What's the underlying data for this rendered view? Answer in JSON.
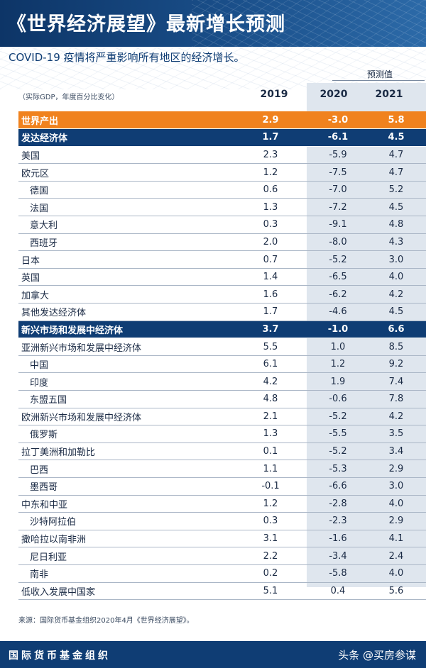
{
  "header": {
    "title": "《世界经济展望》最新增长预测",
    "subtitle": "COVID-19 疫情将严重影响所有地区的经济增长。"
  },
  "table": {
    "units_note": "（实际GDP，年度百分比变化）",
    "projections_label": "预测值",
    "years": [
      "2019",
      "2020",
      "2021"
    ],
    "rows": [
      {
        "name": "世界产出",
        "v2019": "2.9",
        "v2020": "-3.0",
        "v2021": "5.8",
        "style": "orange",
        "level": 1
      },
      {
        "name": "发达经济体",
        "v2019": "1.7",
        "v2020": "-6.1",
        "v2021": "4.5",
        "style": "blue",
        "level": 1
      },
      {
        "name": "美国",
        "v2019": "2.3",
        "v2020": "-5.9",
        "v2021": "4.7",
        "style": "plain",
        "level": 1
      },
      {
        "name": "欧元区",
        "v2019": "1.2",
        "v2020": "-7.5",
        "v2021": "4.7",
        "style": "plain",
        "level": 1
      },
      {
        "name": "德国",
        "v2019": "0.6",
        "v2020": "-7.0",
        "v2021": "5.2",
        "style": "plain",
        "level": 2
      },
      {
        "name": "法国",
        "v2019": "1.3",
        "v2020": "-7.2",
        "v2021": "4.5",
        "style": "plain",
        "level": 2
      },
      {
        "name": "意大利",
        "v2019": "0.3",
        "v2020": "-9.1",
        "v2021": "4.8",
        "style": "plain",
        "level": 2
      },
      {
        "name": "西班牙",
        "v2019": "2.0",
        "v2020": "-8.0",
        "v2021": "4.3",
        "style": "plain",
        "level": 2
      },
      {
        "name": "日本",
        "v2019": "0.7",
        "v2020": "-5.2",
        "v2021": "3.0",
        "style": "plain",
        "level": 1
      },
      {
        "name": "英国",
        "v2019": "1.4",
        "v2020": "-6.5",
        "v2021": "4.0",
        "style": "plain",
        "level": 1
      },
      {
        "name": "加拿大",
        "v2019": "1.6",
        "v2020": "-6.2",
        "v2021": "4.2",
        "style": "plain",
        "level": 1
      },
      {
        "name": "其他发达经济体",
        "v2019": "1.7",
        "v2020": "-4.6",
        "v2021": "4.5",
        "style": "plain",
        "level": 1
      },
      {
        "name": "新兴市场和发展中经济体",
        "v2019": "3.7",
        "v2020": "-1.0",
        "v2021": "6.6",
        "style": "blue",
        "level": 1
      },
      {
        "name": "亚洲新兴市场和发展中经济体",
        "v2019": "5.5",
        "v2020": "1.0",
        "v2021": "8.5",
        "style": "plain",
        "level": 1
      },
      {
        "name": "中国",
        "v2019": "6.1",
        "v2020": "1.2",
        "v2021": "9.2",
        "style": "plain",
        "level": 2
      },
      {
        "name": "印度",
        "v2019": "4.2",
        "v2020": "1.9",
        "v2021": "7.4",
        "style": "plain",
        "level": 2
      },
      {
        "name": "东盟五国",
        "v2019": "4.8",
        "v2020": "-0.6",
        "v2021": "7.8",
        "style": "plain",
        "level": 2
      },
      {
        "name": "欧洲新兴市场和发展中经济体",
        "v2019": "2.1",
        "v2020": "-5.2",
        "v2021": "4.2",
        "style": "plain",
        "level": 1
      },
      {
        "name": "俄罗斯",
        "v2019": "1.3",
        "v2020": "-5.5",
        "v2021": "3.5",
        "style": "plain",
        "level": 2
      },
      {
        "name": "拉丁美洲和加勒比",
        "v2019": "0.1",
        "v2020": "-5.2",
        "v2021": "3.4",
        "style": "plain",
        "level": 1
      },
      {
        "name": "巴西",
        "v2019": "1.1",
        "v2020": "-5.3",
        "v2021": "2.9",
        "style": "plain",
        "level": 2
      },
      {
        "name": "墨西哥",
        "v2019": "-0.1",
        "v2020": "-6.6",
        "v2021": "3.0",
        "style": "plain",
        "level": 2
      },
      {
        "name": "中东和中亚",
        "v2019": "1.2",
        "v2020": "-2.8",
        "v2021": "4.0",
        "style": "plain",
        "level": 1
      },
      {
        "name": "沙特阿拉伯",
        "v2019": "0.3",
        "v2020": "-2.3",
        "v2021": "2.9",
        "style": "plain",
        "level": 2
      },
      {
        "name": "撒哈拉以南非洲",
        "v2019": "3.1",
        "v2020": "-1.6",
        "v2021": "4.1",
        "style": "plain",
        "level": 1
      },
      {
        "name": "尼日利亚",
        "v2019": "2.2",
        "v2020": "-3.4",
        "v2021": "2.4",
        "style": "plain",
        "level": 2
      },
      {
        "name": "南非",
        "v2019": "0.2",
        "v2020": "-5.8",
        "v2021": "4.0",
        "style": "plain",
        "level": 2
      },
      {
        "name": "低收入发展中国家",
        "v2019": "5.1",
        "v2020": "0.4",
        "v2021": "5.6",
        "style": "plain",
        "level": 1
      }
    ]
  },
  "source": "来源：国际货币基金组织2020年4月《世界经济展望》。",
  "footer": {
    "org": "国际货币基金组织",
    "watermark": "头条 @买房参谋"
  },
  "colors": {
    "navy": "#0f3d74",
    "orange": "#f0821e",
    "projection_bg": "#dfe6ee"
  }
}
